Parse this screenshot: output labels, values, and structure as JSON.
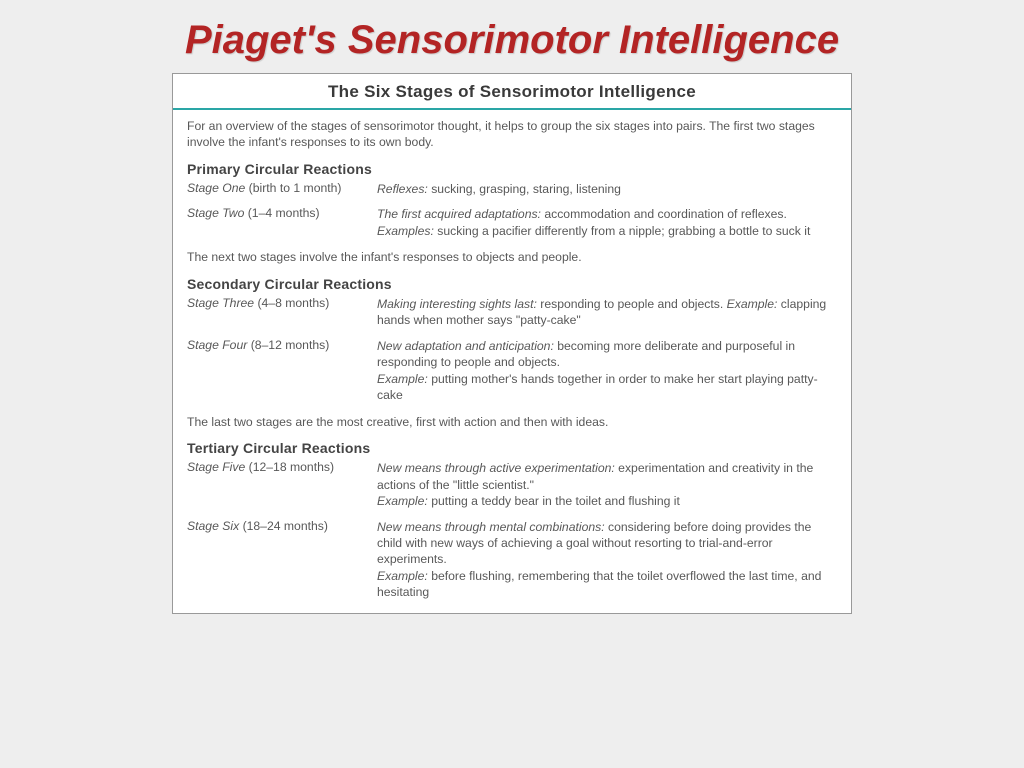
{
  "slide": {
    "title": "Piaget's Sensorimotor Intelligence",
    "title_color": "#b32424",
    "title_fontsize": 40,
    "background_color": "#eeeeee"
  },
  "panel": {
    "title": "The Six Stages of Sensorimotor Intelligence",
    "rule_color": "#2aa6a6",
    "border_color": "#999999",
    "bg_color": "#ffffff",
    "text_color": "#585858",
    "body_fontsize": 12.2,
    "heading_fontsize": 14,
    "intro": "For an overview of the stages of sensorimotor thought, it helps to group the six stages into pairs. The first two stages involve the infant's responses to its own body.",
    "sections": [
      {
        "heading": "Primary Circular Reactions",
        "bridge_after": "The next two stages involve the infant's responses to objects and people.",
        "stages": [
          {
            "name": "Stage One",
            "age": "(birth to 1 month)",
            "lead": "Reflexes:",
            "body": " sucking, grasping, staring, listening",
            "example": null
          },
          {
            "name": "Stage Two",
            "age": "(1–4 months)",
            "lead": "The first acquired adaptations:",
            "body": " accommodation and coordination of reflexes.",
            "example": " sucking a pacifier differently from a nipple; grabbing a bottle to suck it",
            "example_label": "Examples:"
          }
        ]
      },
      {
        "heading": "Secondary Circular Reactions",
        "bridge_after": "The last two stages are the most creative, first with action and then with ideas.",
        "stages": [
          {
            "name": "Stage Three",
            "age": "(4–8 months)",
            "lead": "Making interesting sights last:",
            "body": " responding to people and objects. ",
            "example": " clapping hands when mother says \"patty-cake\"",
            "example_label": "Example:",
            "example_inline": true
          },
          {
            "name": "Stage Four",
            "age": "(8–12 months)",
            "lead": "New adaptation and anticipation:",
            "body": " becoming more deliberate and purposeful in responding to people and objects.",
            "example": " putting mother's hands together in order to make her start playing patty-cake",
            "example_label": "Example:"
          }
        ]
      },
      {
        "heading": "Tertiary Circular Reactions",
        "bridge_after": null,
        "stages": [
          {
            "name": "Stage Five",
            "age": "(12–18 months)",
            "lead": "New means through active experimentation:",
            "body": " experimentation and creativity in the actions of the \"little scientist.\"",
            "example": " putting a teddy bear in the toilet and flushing it",
            "example_label": "Example:"
          },
          {
            "name": "Stage Six",
            "age": "(18–24 months)",
            "lead": "New means through mental combinations:",
            "body": " considering before doing provides the child with new ways of achieving a goal without resorting to trial-and-error experiments.",
            "example": " before flushing, remembering that the toilet overflowed the last time, and hesitating",
            "example_label": "Example:"
          }
        ]
      }
    ]
  }
}
